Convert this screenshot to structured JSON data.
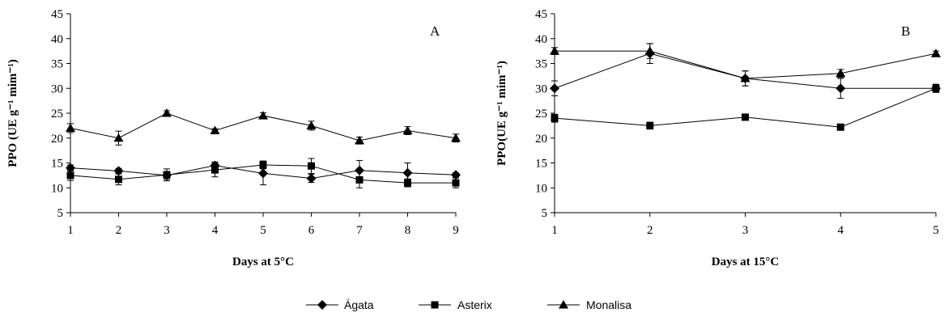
{
  "chart_data": [
    {
      "type": "line",
      "panel_label": "A",
      "xlabel": "Days at 5°C",
      "ylabel": "PPO (UE g⁻¹ mim⁻¹)",
      "categories": [
        1,
        2,
        3,
        4,
        5,
        6,
        7,
        8,
        9
      ],
      "ylim": [
        5,
        45
      ],
      "yticks": [
        5,
        10,
        15,
        20,
        25,
        30,
        35,
        40,
        45
      ],
      "grid": false,
      "series": [
        {
          "name": "Ágata",
          "marker": "diamond",
          "values": [
            14.0,
            13.4,
            12.5,
            14.5,
            12.9,
            11.9,
            13.5,
            13.0,
            12.6
          ],
          "errors": [
            0.6,
            0.5,
            0.8,
            0.7,
            2.3,
            0.8,
            2.0,
            2.0,
            0.4
          ]
        },
        {
          "name": "Asterix",
          "marker": "square",
          "values": [
            12.5,
            11.7,
            12.6,
            13.6,
            14.6,
            14.4,
            11.6,
            11.0,
            11.0
          ],
          "errors": [
            1.0,
            1.1,
            1.2,
            1.4,
            0.8,
            1.5,
            1.6,
            0.8,
            1.0
          ]
        },
        {
          "name": "Monalisa",
          "marker": "triangle",
          "values": [
            22.0,
            20.0,
            25.0,
            21.5,
            24.5,
            22.5,
            19.5,
            21.5,
            20.0
          ],
          "errors": [
            0.9,
            1.4,
            0.5,
            0.4,
            0.6,
            0.9,
            0.7,
            0.8,
            0.8
          ]
        }
      ]
    },
    {
      "type": "line",
      "panel_label": "B",
      "xlabel": "Days at 15°C",
      "ylabel": "PPO(UE g⁻¹ mim⁻¹)",
      "categories": [
        1,
        2,
        3,
        4,
        5
      ],
      "ylim": [
        5,
        45
      ],
      "yticks": [
        5,
        10,
        15,
        20,
        25,
        30,
        35,
        40,
        45
      ],
      "grid": false,
      "series": [
        {
          "name": "Ágata",
          "marker": "diamond",
          "values": [
            30.0,
            37.0,
            32.0,
            30.0,
            30.0
          ],
          "errors": [
            1.5,
            2.0,
            1.5,
            2.0,
            0.8
          ]
        },
        {
          "name": "Asterix",
          "marker": "square",
          "values": [
            24.0,
            22.5,
            24.2,
            22.2,
            30.0
          ],
          "errors": [
            0.8,
            0.7,
            0.5,
            0.6,
            0.8
          ]
        },
        {
          "name": "Monalisa",
          "marker": "triangle",
          "values": [
            37.5,
            37.5,
            32.0,
            33.0,
            37.0
          ],
          "errors": [
            0.7,
            1.5,
            1.5,
            0.8,
            0.5
          ]
        }
      ]
    }
  ],
  "legend": {
    "position": "bottom-center",
    "items": [
      {
        "label": "Ágata",
        "marker": "diamond"
      },
      {
        "label": "Asterix",
        "marker": "square"
      },
      {
        "label": "Monalisa",
        "marker": "triangle"
      }
    ]
  },
  "colors": {
    "line": "#000000",
    "background": "#ffffff"
  }
}
